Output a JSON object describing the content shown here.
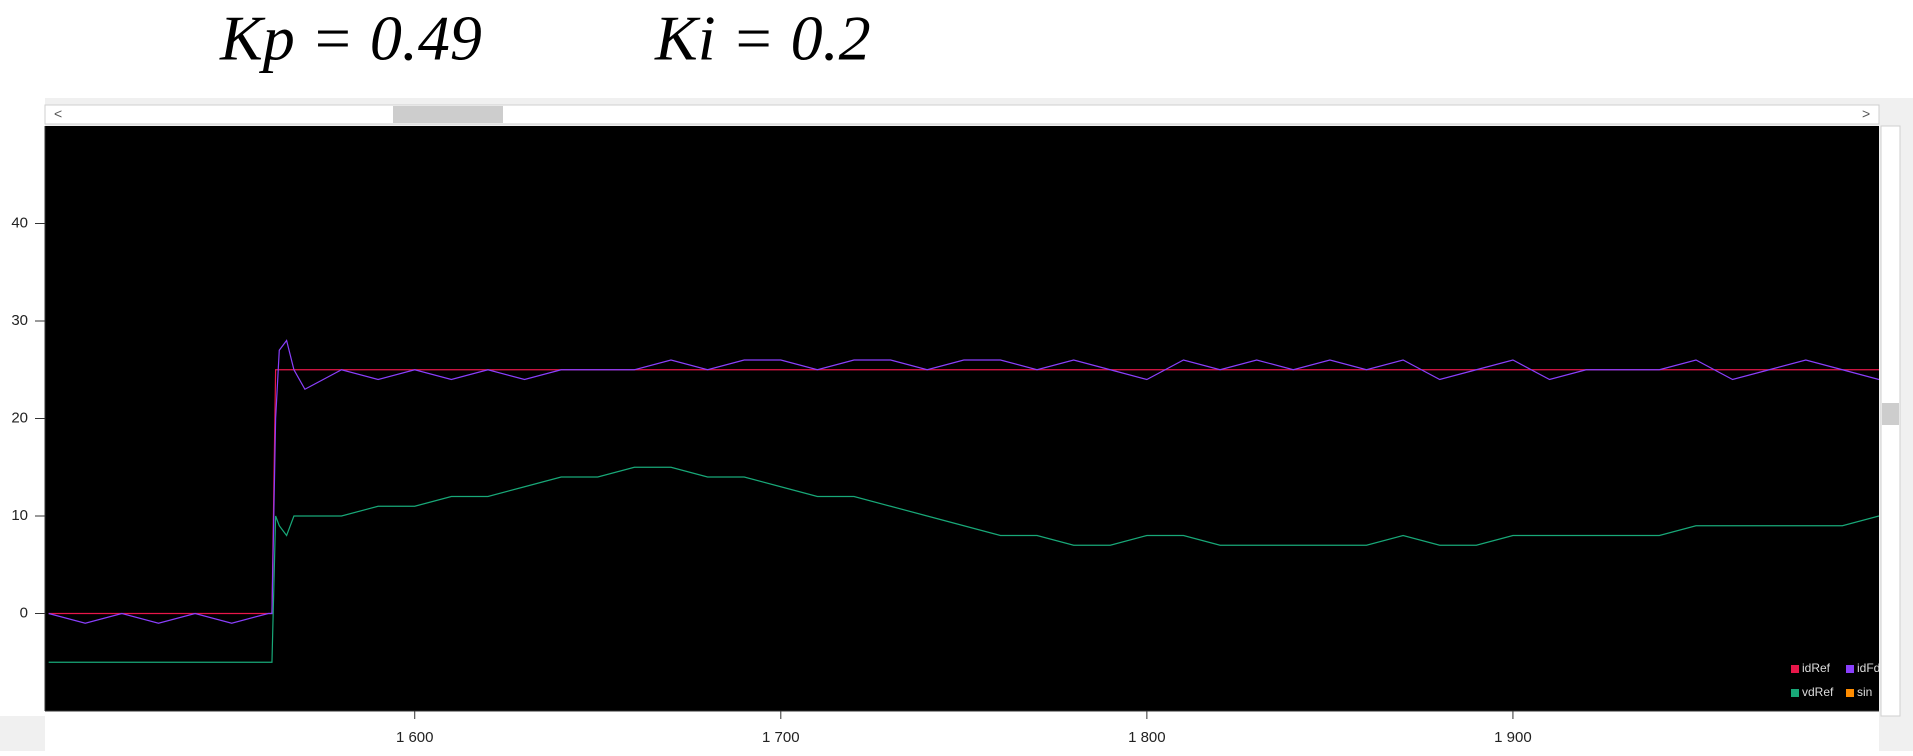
{
  "chart_data": {
    "type": "line",
    "annotations": [
      "Kp = 0.49",
      "Ki = 0.2"
    ],
    "x": [
      1500,
      1510,
      1520,
      1530,
      1540,
      1550,
      1560,
      1561,
      1562,
      1563,
      1565,
      1567,
      1570,
      1575,
      1580,
      1590,
      1600,
      1610,
      1620,
      1630,
      1640,
      1650,
      1660,
      1670,
      1680,
      1690,
      1700,
      1710,
      1720,
      1730,
      1740,
      1750,
      1760,
      1770,
      1780,
      1790,
      1800,
      1810,
      1820,
      1830,
      1840,
      1850,
      1860,
      1870,
      1880,
      1890,
      1900,
      1910,
      1920,
      1930,
      1940,
      1950,
      1960,
      1970,
      1980,
      1990,
      2000
    ],
    "series": [
      {
        "name": "idRef",
        "color": "#e8174a",
        "values": [
          0,
          0,
          0,
          0,
          0,
          0,
          0,
          0,
          25,
          25,
          25,
          25,
          25,
          25,
          25,
          25,
          25,
          25,
          25,
          25,
          25,
          25,
          25,
          25,
          25,
          25,
          25,
          25,
          25,
          25,
          25,
          25,
          25,
          25,
          25,
          25,
          25,
          25,
          25,
          25,
          25,
          25,
          25,
          25,
          25,
          25,
          25,
          25,
          25,
          25,
          25,
          25,
          25,
          25,
          25,
          25,
          25
        ]
      },
      {
        "name": "idFd",
        "color": "#8a3ffc",
        "values": [
          0,
          -1,
          0,
          -1,
          0,
          -1,
          0,
          0,
          20,
          27,
          28,
          25,
          23,
          24,
          25,
          24,
          25,
          24,
          25,
          24,
          25,
          25,
          25,
          26,
          25,
          26,
          26,
          25,
          26,
          26,
          25,
          26,
          26,
          25,
          26,
          25,
          24,
          26,
          25,
          26,
          25,
          26,
          25,
          26,
          24,
          25,
          26,
          24,
          25,
          25,
          25,
          26,
          24,
          25,
          26,
          25,
          24
        ]
      },
      {
        "name": "vdRef",
        "color": "#18a878",
        "values": [
          -5,
          -5,
          -5,
          -5,
          -5,
          -5,
          -5,
          -5,
          10,
          9,
          8,
          10,
          10,
          10,
          10,
          11,
          11,
          12,
          12,
          13,
          14,
          14,
          15,
          15,
          14,
          14,
          13,
          12,
          12,
          11,
          10,
          9,
          8,
          8,
          7,
          7,
          8,
          8,
          7,
          7,
          7,
          7,
          7,
          8,
          7,
          7,
          8,
          8,
          8,
          8,
          8,
          9,
          9,
          9,
          9,
          9,
          10
        ]
      },
      {
        "name": "sin",
        "color": "#ff8c00"
      }
    ],
    "xlim": [
      1499,
      2000
    ],
    "ylim": [
      -10,
      50
    ],
    "xticks": [
      {
        "value": 1600,
        "label": "1 600"
      },
      {
        "value": 1700,
        "label": "1 700"
      },
      {
        "value": 1800,
        "label": "1 800"
      },
      {
        "value": 1900,
        "label": "1 900"
      }
    ],
    "yticks": [
      0,
      10,
      20,
      30,
      40
    ],
    "legend": "lower right"
  }
}
